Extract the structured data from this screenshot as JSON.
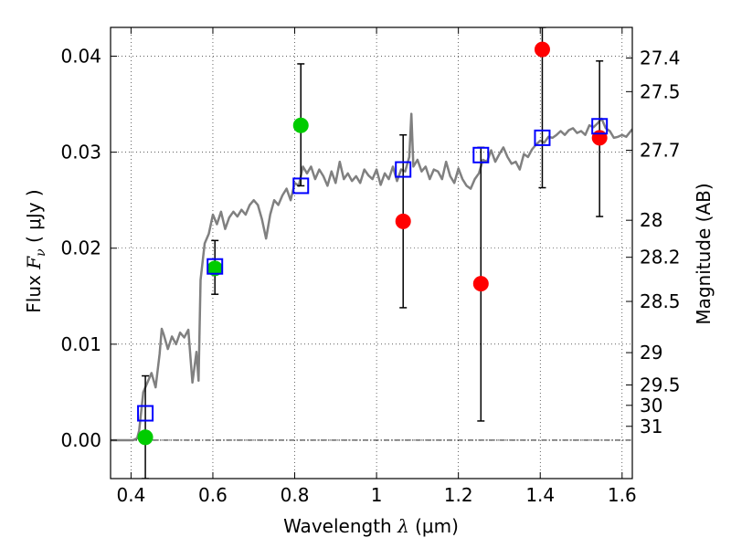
{
  "chart_data": {
    "type": "scatter",
    "title": "",
    "xlabel": {
      "prefix": "Wavelength  ",
      "symbol": "λ",
      "suffix": " (μm)"
    },
    "ylabel": {
      "prefix": "Flux  ",
      "symbol": "F",
      "subscript": "ν",
      "suffix": "  ( μJy )"
    },
    "y2label": "Magnitude (AB)",
    "xlim": [
      0.35,
      1.625
    ],
    "ylim": [
      -0.004,
      0.043
    ],
    "grid": true,
    "x_ticks": [
      {
        "value": 0.4,
        "label": "0.4"
      },
      {
        "value": 0.6,
        "label": "0.6"
      },
      {
        "value": 0.8,
        "label": "0.8"
      },
      {
        "value": 1.0,
        "label": "1"
      },
      {
        "value": 1.2,
        "label": "1.2"
      },
      {
        "value": 1.4,
        "label": "1.4"
      },
      {
        "value": 1.6,
        "label": "1.6"
      }
    ],
    "y_ticks": [
      {
        "value": 0.0,
        "label": "0.00"
      },
      {
        "value": 0.01,
        "label": "0.01"
      },
      {
        "value": 0.02,
        "label": "0.02"
      },
      {
        "value": 0.03,
        "label": "0.03"
      },
      {
        "value": 0.04,
        "label": "0.04"
      }
    ],
    "y2_ticks": [
      {
        "value": 27.4,
        "label": "27.4"
      },
      {
        "value": 27.5,
        "label": "27.5"
      },
      {
        "value": 27.7,
        "label": "27.7"
      },
      {
        "value": 28.0,
        "label": "28"
      },
      {
        "value": 28.2,
        "label": "28.2"
      },
      {
        "value": 28.5,
        "label": "28.5"
      },
      {
        "value": 29.0,
        "label": "29"
      },
      {
        "value": 29.5,
        "label": "29.5"
      },
      {
        "value": 30.0,
        "label": "30"
      },
      {
        "value": 31.0,
        "label": "31"
      }
    ],
    "series": [
      {
        "kind": "line",
        "color": "#808080",
        "x": [
          0.35,
          0.39,
          0.405,
          0.415,
          0.42,
          0.43,
          0.44,
          0.45,
          0.46,
          0.47,
          0.475,
          0.48,
          0.49,
          0.5,
          0.51,
          0.52,
          0.53,
          0.54,
          0.55,
          0.56,
          0.565,
          0.57,
          0.58,
          0.59,
          0.6,
          0.61,
          0.62,
          0.63,
          0.64,
          0.65,
          0.66,
          0.67,
          0.68,
          0.69,
          0.7,
          0.71,
          0.72,
          0.73,
          0.74,
          0.75,
          0.76,
          0.77,
          0.78,
          0.79,
          0.8,
          0.81,
          0.82,
          0.83,
          0.84,
          0.85,
          0.86,
          0.87,
          0.88,
          0.89,
          0.9,
          0.91,
          0.92,
          0.93,
          0.94,
          0.95,
          0.96,
          0.97,
          0.98,
          0.99,
          1.0,
          1.01,
          1.02,
          1.03,
          1.04,
          1.05,
          1.06,
          1.07,
          1.08,
          1.085,
          1.09,
          1.1,
          1.11,
          1.12,
          1.13,
          1.14,
          1.15,
          1.16,
          1.17,
          1.18,
          1.19,
          1.2,
          1.21,
          1.22,
          1.23,
          1.24,
          1.25,
          1.26,
          1.27,
          1.28,
          1.29,
          1.3,
          1.31,
          1.32,
          1.33,
          1.34,
          1.35,
          1.36,
          1.37,
          1.38,
          1.39,
          1.4,
          1.41,
          1.42,
          1.43,
          1.44,
          1.45,
          1.46,
          1.47,
          1.48,
          1.49,
          1.5,
          1.51,
          1.52,
          1.53,
          1.54,
          1.55,
          1.56,
          1.57,
          1.58,
          1.59,
          1.6,
          1.61,
          1.625
        ],
        "y": [
          0.0,
          0.0,
          0.0,
          0.0002,
          0.001,
          0.005,
          0.006,
          0.007,
          0.0055,
          0.009,
          0.0116,
          0.011,
          0.0095,
          0.0108,
          0.01,
          0.0112,
          0.0107,
          0.0115,
          0.006,
          0.0092,
          0.0062,
          0.0167,
          0.0205,
          0.0215,
          0.0235,
          0.0225,
          0.0238,
          0.022,
          0.0232,
          0.0238,
          0.0233,
          0.024,
          0.0235,
          0.0245,
          0.025,
          0.0245,
          0.023,
          0.021,
          0.0235,
          0.025,
          0.0245,
          0.0255,
          0.0262,
          0.025,
          0.0268,
          0.0265,
          0.0285,
          0.0278,
          0.0285,
          0.0272,
          0.0282,
          0.0275,
          0.0265,
          0.028,
          0.0268,
          0.029,
          0.0272,
          0.0278,
          0.027,
          0.0275,
          0.0268,
          0.0282,
          0.0276,
          0.0272,
          0.0282,
          0.0266,
          0.0278,
          0.0272,
          0.0285,
          0.027,
          0.0282,
          0.028,
          0.0295,
          0.034,
          0.0285,
          0.0292,
          0.028,
          0.0285,
          0.0272,
          0.0282,
          0.028,
          0.0272,
          0.029,
          0.0275,
          0.0268,
          0.0283,
          0.0272,
          0.0265,
          0.0262,
          0.0272,
          0.0278,
          0.0292,
          0.029,
          0.0302,
          0.029,
          0.0298,
          0.0305,
          0.0295,
          0.0288,
          0.029,
          0.0282,
          0.0298,
          0.0295,
          0.0303,
          0.0308,
          0.0312,
          0.031,
          0.0316,
          0.0315,
          0.0318,
          0.0322,
          0.0318,
          0.0323,
          0.0325,
          0.032,
          0.0322,
          0.0318,
          0.0328,
          0.0326,
          0.033,
          0.0335,
          0.0325,
          0.0322,
          0.0315,
          0.0316,
          0.0318,
          0.0316,
          0.0324
        ]
      },
      {
        "kind": "points",
        "marker": "circle",
        "color": "#00cc00",
        "x": [
          0.435,
          0.605,
          0.815
        ],
        "y": [
          0.0003,
          0.0179,
          0.0328
        ]
      },
      {
        "kind": "points",
        "marker": "circle",
        "color": "#ff0000",
        "x": [
          1.065,
          1.255,
          1.405,
          1.545
        ],
        "y": [
          0.0228,
          0.0163,
          0.0407,
          0.0315
        ]
      },
      {
        "kind": "points",
        "marker": "open-square",
        "color": "#0000ff",
        "x": [
          0.435,
          0.605,
          0.815,
          1.065,
          1.255,
          1.405,
          1.545
        ],
        "y": [
          0.0028,
          0.0181,
          0.0265,
          0.0282,
          0.0297,
          0.0315,
          0.0327
        ]
      }
    ],
    "errorbars": [
      {
        "x": 0.435,
        "low": -0.004,
        "high": 0.0067
      },
      {
        "x": 0.605,
        "low": 0.0152,
        "high": 0.0208
      },
      {
        "x": 0.815,
        "low": 0.0265,
        "high": 0.0392
      },
      {
        "x": 1.065,
        "low": 0.0138,
        "high": 0.0318
      },
      {
        "x": 1.255,
        "low": 0.002,
        "high": 0.0305
      },
      {
        "x": 1.405,
        "low": 0.0263,
        "high": 0.043
      },
      {
        "x": 1.545,
        "low": 0.0233,
        "high": 0.0395
      }
    ]
  }
}
